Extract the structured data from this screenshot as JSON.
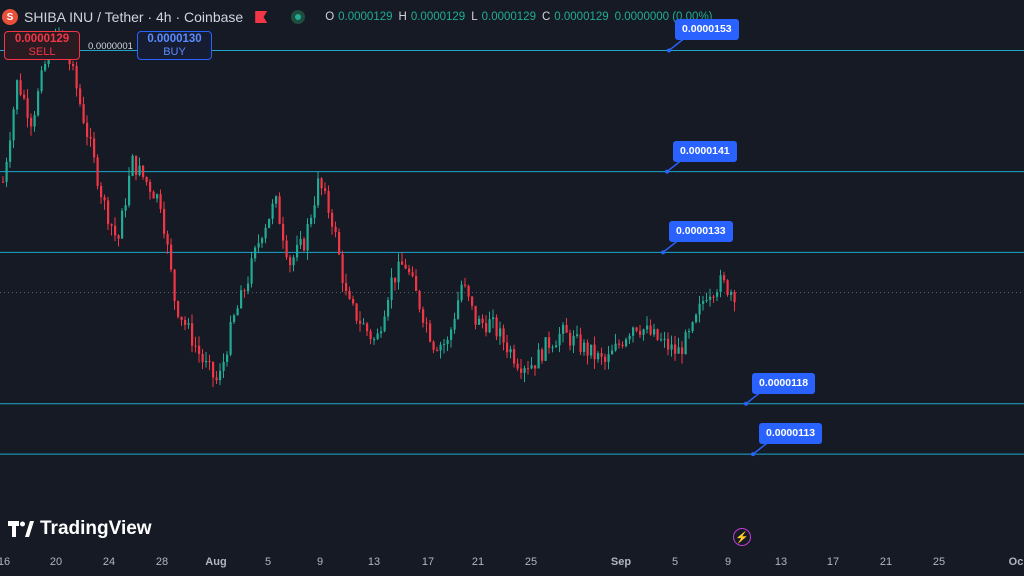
{
  "header": {
    "symbol_title": "SHIBA INU / Tether · 4h · Coinbase",
    "coin_icon": "shib-coin-icon",
    "ohlc": [
      {
        "key": "O",
        "value": "0.0000129"
      },
      {
        "key": "H",
        "value": "0.0000129"
      },
      {
        "key": "L",
        "value": "0.0000129"
      },
      {
        "key": "C",
        "value": "0.0000129"
      },
      {
        "key": "",
        "value": "0.0000000 (0.00%)"
      }
    ]
  },
  "trade": {
    "sell_price": "0.0000129",
    "sell_label": "SELL",
    "spread": "0.0000001",
    "buy_price": "0.0000130",
    "buy_label": "BUY"
  },
  "branding": {
    "logo_text": "TradingView"
  },
  "colors": {
    "background": "#161a25",
    "up": "#22ab94",
    "down": "#f23645",
    "level_line": "#1ea7c9",
    "tag": "#2962ff"
  },
  "chart_data": {
    "type": "candlestick",
    "x_axis_ticks": [
      "16",
      "20",
      "24",
      "28",
      "Aug",
      "5",
      "9",
      "13",
      "17",
      "21",
      "25",
      "Sep",
      "5",
      "9",
      "13",
      "17",
      "21",
      "25",
      "Oc"
    ],
    "y_range": [
      1.04e-05,
      1.58e-05
    ],
    "horizontal_levels": [
      1.53e-05,
      1.41e-05,
      1.33e-05,
      1.18e-05,
      1.13e-05
    ],
    "level_tags": [
      "0.0000153",
      "0.0000141",
      "0.0000133",
      "0.0000118",
      "0.0000113"
    ],
    "current_price_line": 1.29e-05,
    "closes": [
      1.4e-05,
      1.5e-05,
      1.46e-05,
      1.52e-05,
      1.55e-05,
      1.5e-05,
      1.44e-05,
      1.38e-05,
      1.34e-05,
      1.42e-05,
      1.4e-05,
      1.38e-05,
      1.28e-05,
      1.25e-05,
      1.22e-05,
      1.2e-05,
      1.26e-05,
      1.3e-05,
      1.35e-05,
      1.38e-05,
      1.32e-05,
      1.34e-05,
      1.4e-05,
      1.36e-05,
      1.28e-05,
      1.26e-05,
      1.24e-05,
      1.3e-05,
      1.32e-05,
      1.28e-05,
      1.24e-05,
      1.24e-05,
      1.3e-05,
      1.26e-05,
      1.26e-05,
      1.24e-05,
      1.22e-05,
      1.22e-05,
      1.24e-05,
      1.25e-05,
      1.24e-05,
      1.23e-05,
      1.22e-05,
      1.24e-05,
      1.26e-05,
      1.25e-05,
      1.24e-05,
      1.23e-05,
      1.25e-05,
      1.29e-05,
      1.3e-05,
      1.29e-05
    ]
  }
}
